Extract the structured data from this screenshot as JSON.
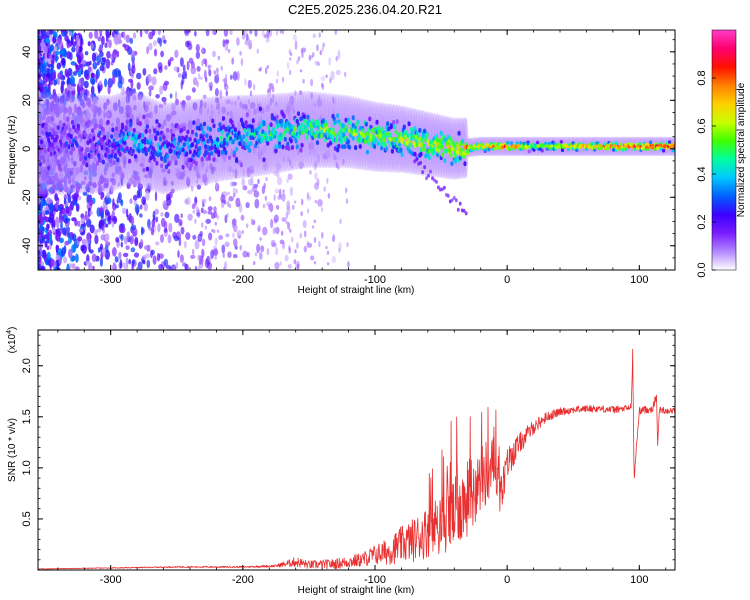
{
  "title": "C2E5.2025.236.04.20.R21",
  "chart_data": [
    {
      "type": "heatmap",
      "xlabel": "Height of straight line (km)",
      "ylabel": "Frequency (Hz)",
      "xlim": [
        -355,
        127
      ],
      "ylim": [
        -50,
        49
      ],
      "xticks": [
        -300,
        -200,
        -100,
        0,
        100
      ],
      "yticks": [
        -40,
        -20,
        0,
        20,
        40
      ],
      "colorbar": {
        "label": "Normalized spectral amplitude",
        "range": [
          0,
          1
        ],
        "ticks": [
          0.0,
          0.2,
          0.4,
          0.6,
          0.8
        ],
        "tick_labels": [
          "0.0",
          "0.2",
          "0.4",
          "0.6",
          "0.8"
        ],
        "colors": [
          "#ffffff",
          "#b388ff",
          "#7a1cff",
          "#3a00ff",
          "#0060ff",
          "#00c8ff",
          "#00ffa0",
          "#40ff00",
          "#c8ff00",
          "#ffd000",
          "#ff8000",
          "#ff1000",
          "#ff0070",
          "#ff3cc8"
        ]
      },
      "ridge": [
        {
          "x": -340,
          "f": 2,
          "a": 0.12
        },
        {
          "x": -300,
          "f": 2,
          "a": 0.18
        },
        {
          "x": -285,
          "f": 5,
          "a": 0.3
        },
        {
          "x": -260,
          "f": 0,
          "a": 0.25
        },
        {
          "x": -220,
          "f": 4,
          "a": 0.32
        },
        {
          "x": -180,
          "f": 6,
          "a": 0.38
        },
        {
          "x": -150,
          "f": 8,
          "a": 0.45
        },
        {
          "x": -120,
          "f": 7,
          "a": 0.48
        },
        {
          "x": -100,
          "f": 5,
          "a": 0.5
        },
        {
          "x": -80,
          "f": 4,
          "a": 0.52
        },
        {
          "x": -60,
          "f": 2,
          "a": 0.55
        },
        {
          "x": -40,
          "f": 0,
          "a": 0.6
        },
        {
          "x": -20,
          "f": 1,
          "a": 0.75
        },
        {
          "x": 0,
          "f": 1,
          "a": 0.85
        },
        {
          "x": 20,
          "f": 1,
          "a": 0.6
        },
        {
          "x": 50,
          "f": 1,
          "a": 0.7
        },
        {
          "x": 90,
          "f": 1,
          "a": 0.88
        },
        {
          "x": 127,
          "f": 1,
          "a": 0.9
        }
      ]
    },
    {
      "type": "line",
      "xlabel": "Height of straight line (km)",
      "ylabel": "SNR (10 * v/v)",
      "y_multiplier": "(x10^4)",
      "xlim": [
        -355,
        127
      ],
      "ylim": [
        0,
        23500
      ],
      "xticks": [
        -300,
        -200,
        -100,
        0,
        100
      ],
      "yticks": [
        5000,
        10000,
        15000,
        20000
      ],
      "ytick_labels": [
        "0.5",
        "1.0",
        "1.5",
        "2.0"
      ],
      "line_color": "#e83030",
      "series": [
        {
          "x": [
            -355,
            -300,
            -250,
            -200,
            -175,
            -160,
            -150,
            -130,
            -110,
            -100,
            -90,
            -80,
            -70,
            -60,
            -50,
            -40,
            -30,
            -20,
            -15,
            -10,
            -5,
            0,
            10,
            20,
            30,
            40,
            50,
            60,
            70,
            80,
            90,
            94,
            95,
            96,
            100,
            110,
            113,
            114,
            115,
            120,
            127
          ],
          "values": [
            100,
            200,
            300,
            300,
            400,
            800,
            500,
            600,
            1000,
            1500,
            1800,
            2500,
            3000,
            3800,
            4500,
            5500,
            7000,
            8500,
            9800,
            10500,
            7000,
            10500,
            12500,
            14000,
            15000,
            15500,
            15700,
            15800,
            15800,
            15700,
            15800,
            16000,
            21500,
            9000,
            15600,
            15800,
            17000,
            12000,
            15700,
            15600,
            15600
          ],
          "noise": [
            20,
            40,
            60,
            80,
            120,
            500,
            400,
            500,
            700,
            1000,
            1300,
            1800,
            2200,
            2600,
            3000,
            3500,
            3800,
            3500,
            3200,
            2600,
            2000,
            1600,
            1000,
            700,
            500,
            400,
            350,
            350,
            350,
            350,
            350,
            400,
            500,
            500,
            350,
            400,
            500,
            500,
            350,
            300,
            300
          ]
        }
      ]
    }
  ]
}
